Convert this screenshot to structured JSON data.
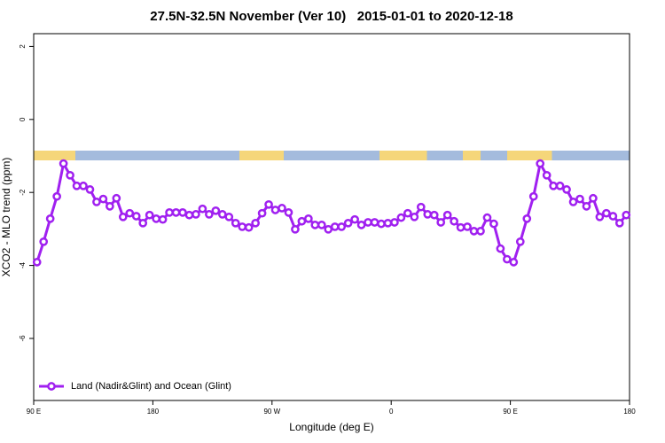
{
  "chart_data": {
    "type": "line",
    "title": "27.5N-32.5N November (Ver 10)   2015-01-01 to 2020-12-18",
    "x_label": "Longitude (deg E)",
    "y_label": "XCO2 - MLO trend (ppm)",
    "x": [
      92.5,
      97.5,
      102.5,
      107.5,
      112.5,
      117.5,
      122.5,
      127.5,
      132.5,
      137.5,
      142.5,
      147.5,
      152.5,
      157.5,
      162.5,
      167.5,
      172.5,
      177.5,
      182.5,
      187.5,
      192.5,
      197.5,
      202.5,
      207.5,
      212.5,
      217.5,
      222.5,
      227.5,
      232.5,
      237.5,
      242.5,
      247.5,
      252.5,
      257.5,
      262.5,
      267.5,
      272.5,
      277.5,
      282.5,
      287.5,
      292.5,
      297.5,
      302.5,
      307.5,
      312.5,
      317.5,
      322.5,
      327.5,
      332.5,
      337.5,
      342.5,
      347.5,
      352.5,
      357.5,
      362.5,
      367.5,
      372.5,
      377.5,
      382.5,
      387.5,
      392.5,
      397.5,
      402.5,
      407.5,
      412.5,
      417.5,
      422.5,
      427.5,
      432.5,
      437.5,
      442.5,
      447.5,
      452.5,
      457.5,
      462.5,
      467.5,
      472.5,
      477.5,
      482.5,
      487.5,
      492.5,
      497.5,
      502.5,
      507.5,
      512.5,
      517.5,
      522.5,
      527.5,
      532.5,
      537.5
    ],
    "series": [
      {
        "name": "Land (Nadir&Glint) and Ocean (Glint)",
        "color": "#a020f0",
        "values": [
          -3.91,
          -3.35,
          -2.72,
          -2.11,
          -1.21,
          -1.53,
          -1.82,
          -1.82,
          -1.92,
          -2.26,
          -2.18,
          -2.38,
          -2.16,
          -2.67,
          -2.57,
          -2.65,
          -2.84,
          -2.62,
          -2.72,
          -2.74,
          -2.55,
          -2.55,
          -2.55,
          -2.62,
          -2.6,
          -2.45,
          -2.6,
          -2.5,
          -2.6,
          -2.67,
          -2.84,
          -2.94,
          -2.96,
          -2.84,
          -2.57,
          -2.33,
          -2.48,
          -2.43,
          -2.55,
          -3.01,
          -2.79,
          -2.72,
          -2.89,
          -2.89,
          -3.01,
          -2.94,
          -2.94,
          -2.84,
          -2.74,
          -2.89,
          -2.82,
          -2.82,
          -2.86,
          -2.84,
          -2.82,
          -2.69,
          -2.57,
          -2.67,
          -2.4,
          -2.6,
          -2.62,
          -2.82,
          -2.62,
          -2.79,
          -2.96,
          -2.94,
          -3.06,
          -3.06,
          -2.69,
          -2.86,
          -3.54,
          -3.83,
          -3.91,
          -3.35,
          -2.72,
          -2.11,
          -1.21,
          -1.53,
          -1.82,
          -1.82,
          -1.92,
          -2.26,
          -2.18,
          -2.38,
          -2.16,
          -2.67,
          -2.57,
          -2.65,
          -2.84,
          -2.62
        ]
      }
    ],
    "xlim": [
      90,
      540
    ],
    "xticks": [
      {
        "value": 90,
        "label": "90 E"
      },
      180,
      {
        "value": 270,
        "label": "90 W"
      },
      {
        "value": 360,
        "label": "0"
      },
      {
        "value": 450,
        "label": "90 E"
      },
      {
        "value": 540,
        "label": "180"
      }
    ],
    "ylim": [
      -7.7,
      2.35
    ],
    "yticks": [
      -6,
      -4,
      -2,
      0,
      2
    ],
    "legend": "bottom-left"
  }
}
